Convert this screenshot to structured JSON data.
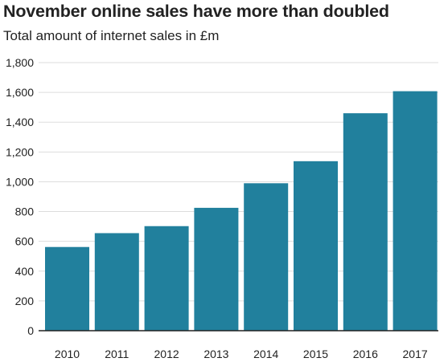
{
  "chart_data": {
    "type": "bar",
    "title": "November online sales have more than doubled",
    "subtitle": "Total amount of internet sales in £m",
    "xlabel": "",
    "ylabel": "",
    "categories": [
      "2010",
      "2011",
      "2012",
      "2013",
      "2014",
      "2015",
      "2016",
      "2017"
    ],
    "values": [
      562,
      655,
      702,
      825,
      990,
      1138,
      1460,
      1608
    ],
    "ylim": [
      0,
      1800
    ],
    "yticks": [
      0,
      200,
      400,
      600,
      800,
      1000,
      1200,
      1400,
      1600,
      1800
    ],
    "ytick_labels": [
      "0",
      "200",
      "400",
      "600",
      "800",
      "1,000",
      "1,200",
      "1,400",
      "1,600",
      "1,800"
    ],
    "grid": "horizontal",
    "bar_color": "#21809d",
    "grid_color": "#dddddd",
    "axis_color": "#222222"
  }
}
